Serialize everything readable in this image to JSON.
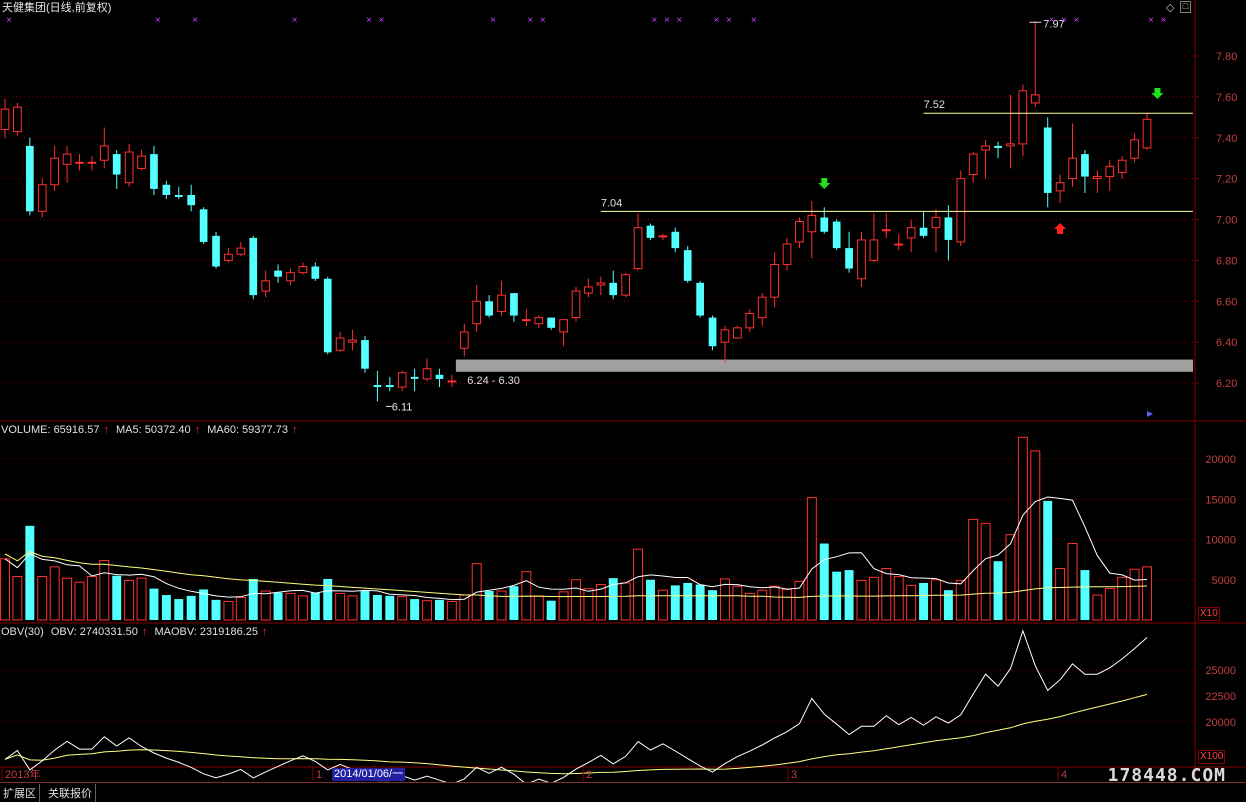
{
  "header": {
    "title": "天健集团(日线,前复权)"
  },
  "volume_panel": {
    "name": "VOLUME: 65916.57",
    "ma5": "MA5: 50372.40",
    "ma60": "MA60: 59377.73",
    "unit": "X10"
  },
  "obv_panel": {
    "name": "OBV(30)",
    "obv": "OBV: 2740331.50",
    "maobv": "MAOBV: 2319186.25",
    "unit": "X100"
  },
  "bottom": {
    "tabs": [
      "扩展区",
      "关联报价"
    ],
    "watermark": "178448.COM",
    "date_cursor": "2014/01/06/一"
  },
  "colors": {
    "up": "#ff3030",
    "down": "#54ffff",
    "grid": "#800000",
    "line_white": "#ffffff",
    "line_yellow": "#ffff80",
    "support_bar": "#a0a0a0"
  },
  "chart_data": [
    {
      "type": "candlestick",
      "title": "天健集团(日线,前复权)",
      "ylim": [
        6.04,
        8.04
      ],
      "y_ticks": [
        "7.80",
        "7.60",
        "7.40",
        "7.20",
        "7.00",
        "6.80",
        "6.60",
        "6.40",
        "6.20"
      ],
      "x_labels": [
        "2013年",
        "1",
        "2",
        "3",
        "4"
      ],
      "annotations": [
        "7.97",
        "7.52",
        "7.04",
        "6.11",
        "6.24 - 6.30"
      ],
      "support_zone": [
        6.24,
        6.3
      ],
      "candles": [
        {
          "o": 7.44,
          "h": 7.59,
          "l": 7.4,
          "c": 7.54
        },
        {
          "o": 7.43,
          "h": 7.57,
          "l": 7.41,
          "c": 7.55
        },
        {
          "o": 7.36,
          "h": 7.4,
          "l": 7.02,
          "c": 7.04
        },
        {
          "o": 7.04,
          "h": 7.2,
          "l": 7.01,
          "c": 7.17
        },
        {
          "o": 7.17,
          "h": 7.36,
          "l": 7.14,
          "c": 7.3
        },
        {
          "o": 7.27,
          "h": 7.36,
          "l": 7.18,
          "c": 7.32
        },
        {
          "o": 7.28,
          "h": 7.32,
          "l": 7.24,
          "c": 7.28
        },
        {
          "o": 7.28,
          "h": 7.31,
          "l": 7.24,
          "c": 7.28
        },
        {
          "o": 7.29,
          "h": 7.45,
          "l": 7.25,
          "c": 7.36
        },
        {
          "o": 7.32,
          "h": 7.34,
          "l": 7.15,
          "c": 7.22
        },
        {
          "o": 7.18,
          "h": 7.37,
          "l": 7.16,
          "c": 7.33
        },
        {
          "o": 7.25,
          "h": 7.34,
          "l": 7.24,
          "c": 7.31
        },
        {
          "o": 7.32,
          "h": 7.36,
          "l": 7.12,
          "c": 7.15
        },
        {
          "o": 7.17,
          "h": 7.19,
          "l": 7.1,
          "c": 7.12
        },
        {
          "o": 7.12,
          "h": 7.16,
          "l": 7.1,
          "c": 7.11
        },
        {
          "o": 7.12,
          "h": 7.17,
          "l": 7.04,
          "c": 7.07
        },
        {
          "o": 7.05,
          "h": 7.06,
          "l": 6.88,
          "c": 6.89
        },
        {
          "o": 6.92,
          "h": 6.94,
          "l": 6.76,
          "c": 6.77
        },
        {
          "o": 6.8,
          "h": 6.86,
          "l": 6.79,
          "c": 6.83
        },
        {
          "o": 6.83,
          "h": 6.89,
          "l": 6.82,
          "c": 6.86
        },
        {
          "o": 6.91,
          "h": 6.92,
          "l": 6.61,
          "c": 6.63
        },
        {
          "o": 6.65,
          "h": 6.75,
          "l": 6.62,
          "c": 6.7
        },
        {
          "o": 6.75,
          "h": 6.78,
          "l": 6.69,
          "c": 6.72
        },
        {
          "o": 6.7,
          "h": 6.76,
          "l": 6.68,
          "c": 6.74
        },
        {
          "o": 6.74,
          "h": 6.79,
          "l": 6.73,
          "c": 6.77
        },
        {
          "o": 6.77,
          "h": 6.79,
          "l": 6.7,
          "c": 6.71
        },
        {
          "o": 6.71,
          "h": 6.72,
          "l": 6.34,
          "c": 6.35
        },
        {
          "o": 6.36,
          "h": 6.45,
          "l": 6.35,
          "c": 6.42
        },
        {
          "o": 6.4,
          "h": 6.46,
          "l": 6.36,
          "c": 6.41
        },
        {
          "o": 6.41,
          "h": 6.43,
          "l": 6.25,
          "c": 6.27
        },
        {
          "o": 6.19,
          "h": 6.26,
          "l": 6.11,
          "c": 6.18
        },
        {
          "o": 6.19,
          "h": 6.23,
          "l": 6.16,
          "c": 6.18
        },
        {
          "o": 6.18,
          "h": 6.26,
          "l": 6.16,
          "c": 6.25
        },
        {
          "o": 6.23,
          "h": 6.27,
          "l": 6.16,
          "c": 6.22
        },
        {
          "o": 6.22,
          "h": 6.32,
          "l": 6.21,
          "c": 6.27
        },
        {
          "o": 6.24,
          "h": 6.27,
          "l": 6.18,
          "c": 6.22
        },
        {
          "o": 6.21,
          "h": 6.24,
          "l": 6.18,
          "c": 6.21
        },
        {
          "o": 6.37,
          "h": 6.49,
          "l": 6.33,
          "c": 6.45
        },
        {
          "o": 6.49,
          "h": 6.68,
          "l": 6.45,
          "c": 6.6
        },
        {
          "o": 6.6,
          "h": 6.63,
          "l": 6.52,
          "c": 6.53
        },
        {
          "o": 6.55,
          "h": 6.7,
          "l": 6.53,
          "c": 6.63
        },
        {
          "o": 6.64,
          "h": 6.64,
          "l": 6.5,
          "c": 6.53
        },
        {
          "o": 6.51,
          "h": 6.56,
          "l": 6.48,
          "c": 6.51
        },
        {
          "o": 6.49,
          "h": 6.53,
          "l": 6.47,
          "c": 6.52
        },
        {
          "o": 6.52,
          "h": 6.52,
          "l": 6.46,
          "c": 6.47
        },
        {
          "o": 6.45,
          "h": 6.51,
          "l": 6.38,
          "c": 6.51
        },
        {
          "o": 6.52,
          "h": 6.67,
          "l": 6.5,
          "c": 6.65
        },
        {
          "o": 6.64,
          "h": 6.71,
          "l": 6.62,
          "c": 6.67
        },
        {
          "o": 6.68,
          "h": 6.72,
          "l": 6.63,
          "c": 6.69
        },
        {
          "o": 6.69,
          "h": 6.75,
          "l": 6.61,
          "c": 6.63
        },
        {
          "o": 6.63,
          "h": 6.74,
          "l": 6.62,
          "c": 6.73
        },
        {
          "o": 6.76,
          "h": 7.03,
          "l": 6.75,
          "c": 6.96
        },
        {
          "o": 6.97,
          "h": 6.98,
          "l": 6.9,
          "c": 6.91
        },
        {
          "o": 6.92,
          "h": 6.93,
          "l": 6.9,
          "c": 6.92
        },
        {
          "o": 6.94,
          "h": 6.96,
          "l": 6.84,
          "c": 6.86
        },
        {
          "o": 6.85,
          "h": 6.87,
          "l": 6.69,
          "c": 6.7
        },
        {
          "o": 6.69,
          "h": 6.7,
          "l": 6.52,
          "c": 6.53
        },
        {
          "o": 6.52,
          "h": 6.53,
          "l": 6.36,
          "c": 6.38
        },
        {
          "o": 6.4,
          "h": 6.48,
          "l": 6.3,
          "c": 6.46
        },
        {
          "o": 6.42,
          "h": 6.48,
          "l": 6.42,
          "c": 6.47
        },
        {
          "o": 6.47,
          "h": 6.56,
          "l": 6.45,
          "c": 6.54
        },
        {
          "o": 6.52,
          "h": 6.64,
          "l": 6.48,
          "c": 6.62
        },
        {
          "o": 6.62,
          "h": 6.84,
          "l": 6.57,
          "c": 6.78
        },
        {
          "o": 6.78,
          "h": 6.91,
          "l": 6.75,
          "c": 6.88
        },
        {
          "o": 6.89,
          "h": 7.01,
          "l": 6.86,
          "c": 6.99
        },
        {
          "o": 6.94,
          "h": 7.09,
          "l": 6.81,
          "c": 7.02
        },
        {
          "o": 7.01,
          "h": 7.06,
          "l": 6.93,
          "c": 6.94
        },
        {
          "o": 6.99,
          "h": 7.0,
          "l": 6.85,
          "c": 6.86
        },
        {
          "o": 6.86,
          "h": 6.94,
          "l": 6.74,
          "c": 6.76
        },
        {
          "o": 6.71,
          "h": 6.94,
          "l": 6.67,
          "c": 6.9
        },
        {
          "o": 6.8,
          "h": 7.03,
          "l": 6.79,
          "c": 6.9
        },
        {
          "o": 6.95,
          "h": 7.03,
          "l": 6.91,
          "c": 6.95
        },
        {
          "o": 6.88,
          "h": 6.93,
          "l": 6.85,
          "c": 6.88
        },
        {
          "o": 6.91,
          "h": 7.0,
          "l": 6.84,
          "c": 6.96
        },
        {
          "o": 6.96,
          "h": 7.04,
          "l": 6.91,
          "c": 6.92
        },
        {
          "o": 6.96,
          "h": 7.05,
          "l": 6.84,
          "c": 7.01
        },
        {
          "o": 7.01,
          "h": 7.07,
          "l": 6.8,
          "c": 6.9
        },
        {
          "o": 6.89,
          "h": 7.24,
          "l": 6.87,
          "c": 7.2
        },
        {
          "o": 7.22,
          "h": 7.33,
          "l": 7.18,
          "c": 7.32
        },
        {
          "o": 7.34,
          "h": 7.39,
          "l": 7.2,
          "c": 7.36
        },
        {
          "o": 7.36,
          "h": 7.38,
          "l": 7.3,
          "c": 7.35
        },
        {
          "o": 7.36,
          "h": 7.61,
          "l": 7.25,
          "c": 7.37
        },
        {
          "o": 7.37,
          "h": 7.66,
          "l": 7.31,
          "c": 7.63
        },
        {
          "o": 7.57,
          "h": 7.97,
          "l": 7.55,
          "c": 7.61
        },
        {
          "o": 7.45,
          "h": 7.5,
          "l": 7.06,
          "c": 7.13
        },
        {
          "o": 7.14,
          "h": 7.22,
          "l": 7.08,
          "c": 7.18
        },
        {
          "o": 7.2,
          "h": 7.47,
          "l": 7.16,
          "c": 7.3
        },
        {
          "o": 7.32,
          "h": 7.34,
          "l": 7.13,
          "c": 7.21
        },
        {
          "o": 7.2,
          "h": 7.24,
          "l": 7.13,
          "c": 7.21
        },
        {
          "o": 7.21,
          "h": 7.29,
          "l": 7.14,
          "c": 7.26
        },
        {
          "o": 7.23,
          "h": 7.31,
          "l": 7.2,
          "c": 7.29
        },
        {
          "o": 7.3,
          "h": 7.42,
          "l": 7.28,
          "c": 7.39
        },
        {
          "o": 7.35,
          "h": 7.52,
          "l": 7.34,
          "c": 7.49
        }
      ]
    },
    {
      "type": "bar",
      "title": "VOLUME",
      "ylim": [
        0,
        22000
      ],
      "y_ticks": [
        "20000",
        "15000",
        "10000",
        "5000"
      ],
      "values": [
        7600,
        5400,
        11700,
        5400,
        6600,
        5200,
        4700,
        5400,
        7400,
        5500,
        4900,
        5200,
        3900,
        3100,
        2600,
        3000,
        3800,
        2500,
        2300,
        2800,
        5100,
        3600,
        3400,
        3300,
        3000,
        3400,
        5100,
        3300,
        3000,
        3600,
        3100,
        3000,
        2900,
        2600,
        2400,
        2500,
        2300,
        3100,
        7000,
        3600,
        3600,
        4200,
        6000,
        3000,
        2400,
        3500,
        5000,
        3900,
        4400,
        5200,
        4600,
        8800,
        5000,
        3700,
        4300,
        4600,
        4400,
        3700,
        5100,
        4200,
        3300,
        3700,
        4200,
        3800,
        4800,
        15200,
        9500,
        6000,
        6200,
        4900,
        5300,
        6400,
        5400,
        4300,
        4600,
        5000,
        3700,
        4900,
        12500,
        12000,
        7300,
        10600,
        22700,
        21000,
        14800,
        6400,
        9500,
        6200,
        3100,
        3900,
        5300,
        6300,
        6600
      ],
      "series": [
        {
          "name": "MA5"
        },
        {
          "name": "MA60"
        }
      ]
    },
    {
      "type": "line",
      "title": "OBV(30)",
      "ylim": [
        15000,
        28000
      ],
      "y_ticks": [
        "25000",
        "22500",
        "20000"
      ],
      "series": [
        {
          "name": "OBV"
        },
        {
          "name": "MAOBV"
        }
      ]
    }
  ]
}
